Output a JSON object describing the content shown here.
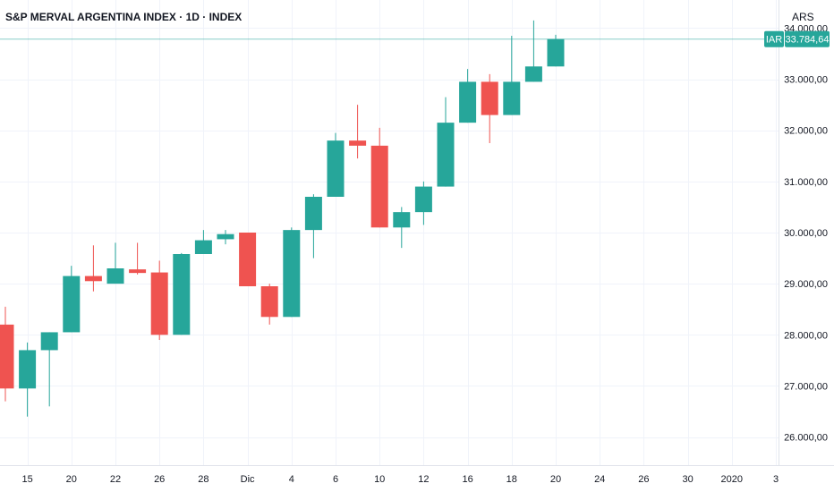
{
  "header": {
    "title": "S&P MERVAL ARGENTINA INDEX · 1D · INDEX",
    "currency": "ARS"
  },
  "colors": {
    "up": "#26a69a",
    "down": "#ef5350",
    "grid": "#f0f3fa",
    "text": "#131722",
    "price_line": "#26a69a"
  },
  "chart_data": {
    "type": "candlestick",
    "title": "S&P MERVAL ARGENTINA INDEX · 1D · INDEX",
    "currency": "ARS",
    "ylim": [
      25450,
      34550
    ],
    "y_ticks": [
      {
        "value": 26000,
        "label": "26.000,00"
      },
      {
        "value": 27000,
        "label": "27.000,00"
      },
      {
        "value": 28000,
        "label": "28.000,00"
      },
      {
        "value": 29000,
        "label": "29.000,00"
      },
      {
        "value": 30000,
        "label": "30.000,00"
      },
      {
        "value": 31000,
        "label": "31.000,00"
      },
      {
        "value": 32000,
        "label": "32.000,00"
      },
      {
        "value": 33000,
        "label": "33.000,00"
      },
      {
        "value": 34000,
        "label": "34.000,00"
      }
    ],
    "x_ticks": [
      {
        "index": 1,
        "label": "15"
      },
      {
        "index": 3,
        "label": "20"
      },
      {
        "index": 5,
        "label": "22"
      },
      {
        "index": 7,
        "label": "26"
      },
      {
        "index": 9,
        "label": "28"
      },
      {
        "index": 11,
        "label": "Dic"
      },
      {
        "index": 13,
        "label": "4"
      },
      {
        "index": 15,
        "label": "6"
      },
      {
        "index": 17,
        "label": "10"
      },
      {
        "index": 19,
        "label": "12"
      },
      {
        "index": 21,
        "label": "16"
      },
      {
        "index": 23,
        "label": "18"
      },
      {
        "index": 25,
        "label": "20"
      },
      {
        "index": 27,
        "label": "24"
      },
      {
        "index": 29,
        "label": "26"
      },
      {
        "index": 31,
        "label": "30"
      },
      {
        "index": 33,
        "label": "2020"
      },
      {
        "index": 35,
        "label": "3"
      }
    ],
    "last_price": {
      "value": 33784.64,
      "label": "33.784,64",
      "tag": "IAR"
    },
    "candles": [
      {
        "index": 0,
        "open": 28200,
        "high": 28550,
        "low": 26700,
        "close": 26950
      },
      {
        "index": 1,
        "open": 26950,
        "high": 27850,
        "low": 26400,
        "close": 27700
      },
      {
        "index": 2,
        "open": 27700,
        "high": 28050,
        "low": 26600,
        "close": 28050
      },
      {
        "index": 3,
        "open": 28050,
        "high": 29350,
        "low": 28050,
        "close": 29150
      },
      {
        "index": 4,
        "open": 29150,
        "high": 29750,
        "low": 28850,
        "close": 29050
      },
      {
        "index": 5,
        "open": 29000,
        "high": 29800,
        "low": 29000,
        "close": 29300
      },
      {
        "index": 6,
        "open": 29280,
        "high": 29800,
        "low": 29180,
        "close": 29220
      },
      {
        "index": 7,
        "open": 29220,
        "high": 29450,
        "low": 27900,
        "close": 28000
      },
      {
        "index": 8,
        "open": 28000,
        "high": 29600,
        "low": 28000,
        "close": 29580
      },
      {
        "index": 9,
        "open": 29580,
        "high": 30050,
        "low": 29580,
        "close": 29850
      },
      {
        "index": 10,
        "open": 29870,
        "high": 30050,
        "low": 29770,
        "close": 29970
      },
      {
        "index": 11,
        "open": 30000,
        "high": 30000,
        "low": 28950,
        "close": 28950
      },
      {
        "index": 12,
        "open": 28950,
        "high": 29000,
        "low": 28200,
        "close": 28350
      },
      {
        "index": 13,
        "open": 28350,
        "high": 30100,
        "low": 28350,
        "close": 30050
      },
      {
        "index": 14,
        "open": 30050,
        "high": 30750,
        "low": 29500,
        "close": 30700
      },
      {
        "index": 15,
        "open": 30700,
        "high": 31950,
        "low": 30700,
        "close": 31800
      },
      {
        "index": 16,
        "open": 31800,
        "high": 32500,
        "low": 31450,
        "close": 31700
      },
      {
        "index": 17,
        "open": 31700,
        "high": 32050,
        "low": 30100,
        "close": 30100
      },
      {
        "index": 18,
        "open": 30100,
        "high": 30500,
        "low": 29700,
        "close": 30400
      },
      {
        "index": 19,
        "open": 30400,
        "high": 31000,
        "low": 30150,
        "close": 30900
      },
      {
        "index": 20,
        "open": 30900,
        "high": 32650,
        "low": 30900,
        "close": 32150
      },
      {
        "index": 21,
        "open": 32150,
        "high": 33200,
        "low": 32150,
        "close": 32950
      },
      {
        "index": 22,
        "open": 32950,
        "high": 33100,
        "low": 31750,
        "close": 32300
      },
      {
        "index": 23,
        "open": 32300,
        "high": 33850,
        "low": 32300,
        "close": 32950
      },
      {
        "index": 24,
        "open": 32950,
        "high": 34150,
        "low": 32950,
        "close": 33250
      },
      {
        "index": 25,
        "open": 33250,
        "high": 33870,
        "low": 33250,
        "close": 33784.64
      }
    ]
  }
}
